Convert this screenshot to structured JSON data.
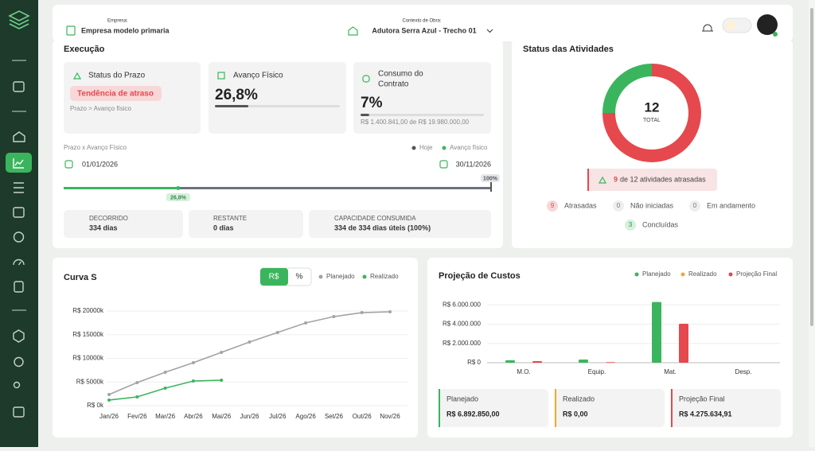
{
  "header": {
    "empresa_label": "Empresa:",
    "empresa": "Empresa modelo primaria",
    "obra_label": "Contexto de Obra:",
    "obra": "Adutora Serra Azul - Trecho 01"
  },
  "execucao": {
    "title": "Execução",
    "prazo": {
      "title": "Status do Prazo",
      "badge": "Tendência de atraso",
      "note": "Prazo > Avanço físico"
    },
    "avanco": {
      "title": "Avanço Físico",
      "value": 26.8,
      "label": "26,8%"
    },
    "consumo": {
      "title_lines": [
        "Consumo do",
        "Contrato"
      ],
      "value": 7,
      "label": "7%",
      "detail": "R$ 1.400.841,00 de R$ 19.980.000,00"
    },
    "timeline": {
      "title": "Prazo x Avanço Físico",
      "legend": [
        "Hoje",
        "Avanço físico"
      ],
      "start": "01/01/2026",
      "end": "30/11/2026",
      "avanco": {
        "value": 26.8,
        "label": "26,8%"
      },
      "hoje": {
        "value": 100,
        "label": "100%"
      }
    },
    "stats": [
      {
        "label": "DECORRIDO",
        "value": "334 dias"
      },
      {
        "label": "RESTANTE",
        "value": "0 dias"
      },
      {
        "label": "CAPACIDADE CONSUMIDA",
        "value": "334 de 334 dias úteis (100%)"
      }
    ]
  },
  "status": {
    "title": "Status das Atividades",
    "alert_text": "de 12 atividades atrasadas"
  },
  "custos_totais": [
    "R$ 6.892.850,00",
    "R$ 0,00",
    "R$ 4.275.634,91"
  ],
  "chart_data": [
    {
      "type": "pie",
      "total": 12,
      "total_label": "TOTAL",
      "categories": [
        "Atrasadas",
        "Não iniciadas",
        "Em andamento",
        "Concluídas"
      ],
      "values": [
        9,
        0,
        0,
        3
      ],
      "colors": [
        "#e5484d",
        "#9ca3af",
        "#9ca3af",
        "#3bb55d"
      ]
    },
    {
      "type": "line",
      "title": "Curva S",
      "toggle": [
        "R$",
        "%"
      ],
      "categories": [
        "Jan/26",
        "Fev/26",
        "Mar/26",
        "Abr/26",
        "Mai/26",
        "Jun/26",
        "Jul/26",
        "Ago/26",
        "Set/26",
        "Out/26",
        "Nov/26"
      ],
      "series": [
        {
          "name": "Planejado",
          "color": "#a3a3a3",
          "values": [
            2350,
            4870,
            7060,
            9080,
            11260,
            13450,
            15460,
            17480,
            18820,
            19660,
            19830
          ]
        },
        {
          "name": "Realizado",
          "color": "#3bb55d",
          "values": [
            1180,
            1850,
            3700,
            5210,
            5380,
            null,
            null,
            null,
            null,
            null,
            null
          ]
        }
      ],
      "ylim": [
        0,
        20000
      ],
      "yticks": [
        {
          "value": 0,
          "label": "R$ 0k"
        },
        {
          "value": 5000,
          "label": "R$ 5000k"
        },
        {
          "value": 10000,
          "label": "R$ 10000k"
        },
        {
          "value": 15000,
          "label": "R$ 15000k"
        },
        {
          "value": 20000,
          "label": "R$ 20000k"
        }
      ],
      "grid": true
    },
    {
      "type": "bar",
      "title": "Projeção de Custos",
      "categories": [
        "M.O.",
        "Equip.",
        "Mat.",
        "Desp."
      ],
      "series": [
        {
          "name": "Planejado",
          "color": "#3bb55d",
          "values": [
            260000,
            330000,
            6300000,
            0
          ]
        },
        {
          "name": "Realizado",
          "color": "#f0a830",
          "values": [
            0,
            0,
            0,
            0
          ]
        },
        {
          "name": "Projeção Final",
          "color": "#e5484d",
          "values": [
            170000,
            60000,
            4045000,
            0
          ]
        }
      ],
      "ylim": [
        0,
        6600000
      ],
      "yticks": [
        {
          "value": 0,
          "label": "R$ 0"
        },
        {
          "value": 2000000,
          "label": "R$ 2.000.000"
        },
        {
          "value": 4000000,
          "label": "R$ 4.000.000"
        },
        {
          "value": 6000000,
          "label": "R$ 6.000.000"
        }
      ],
      "grid": true
    }
  ]
}
